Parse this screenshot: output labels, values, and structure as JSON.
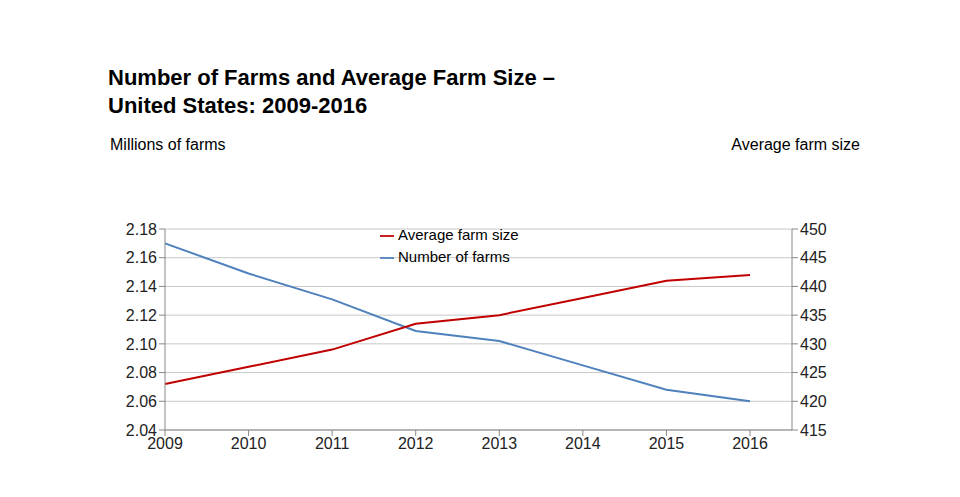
{
  "chart_data": {
    "type": "line",
    "title": "Number of Farms and Average Farm Size –\nUnited States: 2009-2016",
    "y_label": "Millions of farms",
    "y2_label": "Average farm size",
    "categories": [
      "2009",
      "2010",
      "2011",
      "2012",
      "2013",
      "2014",
      "2015",
      "2016"
    ],
    "series": [
      {
        "name": "Number of farms",
        "color": "#4f81bd",
        "values": [
          2.17,
          2.149,
          2.131,
          2.109,
          2.102,
          2.085,
          2.068,
          2.06
        ]
      },
      {
        "name": "Average farm size",
        "color": "#c00000",
        "axis": "y2",
        "values": [
          423,
          426,
          429,
          433.5,
          435,
          438,
          441,
          442
        ]
      }
    ],
    "ylim": [
      2.04,
      2.18
    ],
    "yticks": [
      2.04,
      2.06,
      2.08,
      {
        "value": 2.1,
        "label": "2.10"
      },
      2.12,
      2.14,
      2.16,
      2.18
    ],
    "y2lim": [
      415,
      450
    ],
    "y2ticks": [
      415,
      420,
      425,
      430,
      435,
      440,
      445,
      450
    ],
    "grid": true,
    "legend": "top"
  }
}
